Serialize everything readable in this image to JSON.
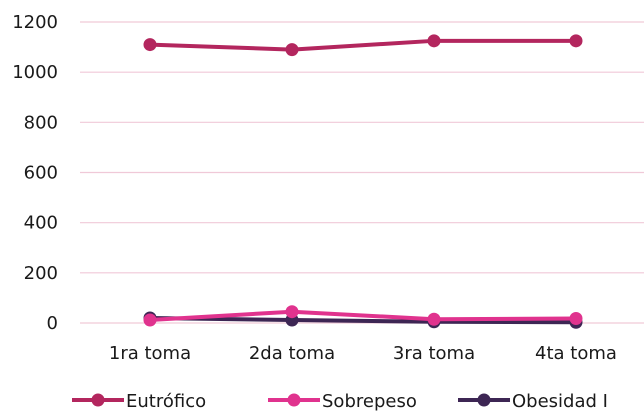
{
  "chart_data": {
    "type": "line",
    "categories": [
      "1ra toma",
      "2da toma",
      "3ra toma",
      "4ta toma"
    ],
    "ylim": [
      0,
      1200
    ],
    "yticks": [
      0,
      200,
      400,
      600,
      800,
      1000,
      1200
    ],
    "grid": true,
    "legend_position": "bottom",
    "series": [
      {
        "name": "Eutrófico",
        "color": "#b3265e",
        "values": [
          1110,
          1090,
          1125,
          1125
        ]
      },
      {
        "name": "Sobrepeso",
        "color": "#e0338e",
        "values": [
          12,
          45,
          15,
          18
        ]
      },
      {
        "name": "Obesidad I",
        "color": "#3d2654",
        "values": [
          20,
          12,
          5,
          3
        ]
      }
    ]
  }
}
